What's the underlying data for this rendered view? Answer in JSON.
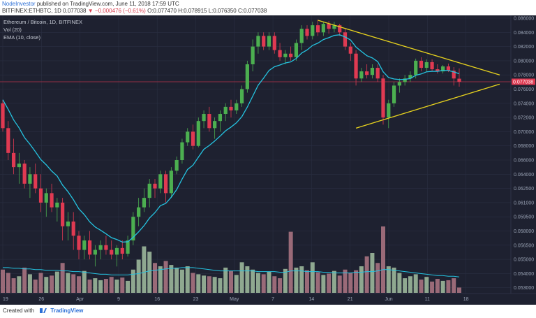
{
  "header": {
    "user": "NodeInvestor",
    "published_text": "published on TradingView.com, June 11, 2018 17:59 UTC",
    "symbol": "BITFINEX:ETHBTC, 1D",
    "last": "0.077038",
    "change": "▼ −0.000476 (−0.61%)",
    "ohlc": "O:0.077470 H:0.078915 L:0.076350 C:0.077038"
  },
  "footer": {
    "created_with": "Created with",
    "brand": "TradingView"
  },
  "chart_data": {
    "type": "candlestick",
    "legend": [
      "Ethereum / Bitcoin, 1D, BITFINEX",
      "Vol (20)",
      "EMA (10, close)"
    ],
    "x_tick_labels": [
      "19",
      "26",
      "Apr",
      "9",
      "16",
      "23",
      "May",
      "7",
      "14",
      "21",
      "Jun",
      "11",
      "18"
    ],
    "y_tick_labels": [
      "0.086000",
      "0.084000",
      "0.082000",
      "0.080000",
      "0.078000",
      "0.076000",
      "0.074000",
      "0.072000",
      "0.070000",
      "0.068000",
      "0.066000",
      "0.064000",
      "0.062500",
      "0.061000",
      "0.059500",
      "0.058000",
      "0.056500",
      "0.055000",
      "0.054000",
      "0.053000"
    ],
    "last_price_label": "0.077038",
    "colors": {
      "background": "#1e2130",
      "grid": "#2a2f42",
      "up": "#4caf50",
      "down": "#e03a52",
      "ema": "#25c3e0",
      "trendline": "#e8d31e",
      "volume_up": "#8fa890",
      "volume_down": "#9a6a78",
      "price_line": "#b8334a",
      "price_tag": "#e03a52"
    },
    "ohlc": [
      [
        0.074,
        0.0745,
        0.07,
        0.0705
      ],
      [
        0.0705,
        0.0715,
        0.066,
        0.067
      ],
      [
        0.067,
        0.069,
        0.064,
        0.065
      ],
      [
        0.065,
        0.067,
        0.063,
        0.0655
      ],
      [
        0.0655,
        0.066,
        0.0625,
        0.063
      ],
      [
        0.063,
        0.065,
        0.0615,
        0.064
      ],
      [
        0.064,
        0.0655,
        0.062,
        0.0625
      ],
      [
        0.0625,
        0.064,
        0.06,
        0.061
      ],
      [
        0.061,
        0.0625,
        0.0595,
        0.062
      ],
      [
        0.062,
        0.063,
        0.06,
        0.0605
      ],
      [
        0.0605,
        0.0615,
        0.059,
        0.061
      ],
      [
        0.061,
        0.0615,
        0.057,
        0.0585
      ],
      [
        0.0585,
        0.06,
        0.057,
        0.059
      ],
      [
        0.059,
        0.06,
        0.056,
        0.0575
      ],
      [
        0.0575,
        0.058,
        0.055,
        0.056
      ],
      [
        0.056,
        0.0575,
        0.055,
        0.057
      ],
      [
        0.057,
        0.058,
        0.055,
        0.0555
      ],
      [
        0.0555,
        0.0565,
        0.0545,
        0.056
      ],
      [
        0.056,
        0.057,
        0.055,
        0.0565
      ],
      [
        0.0565,
        0.0575,
        0.0555,
        0.056
      ],
      [
        0.056,
        0.057,
        0.055,
        0.0555
      ],
      [
        0.0555,
        0.0565,
        0.0545,
        0.0562
      ],
      [
        0.0562,
        0.057,
        0.055,
        0.0556
      ],
      [
        0.0556,
        0.0575,
        0.0553,
        0.057
      ],
      [
        0.057,
        0.06,
        0.0565,
        0.0595
      ],
      [
        0.0595,
        0.0615,
        0.0585,
        0.0605
      ],
      [
        0.0605,
        0.0625,
        0.06,
        0.0615
      ],
      [
        0.0615,
        0.0635,
        0.0605,
        0.063
      ],
      [
        0.063,
        0.0635,
        0.0615,
        0.0625
      ],
      [
        0.0625,
        0.0645,
        0.062,
        0.064
      ],
      [
        0.064,
        0.0645,
        0.061,
        0.062
      ],
      [
        0.062,
        0.065,
        0.0615,
        0.0645
      ],
      [
        0.0645,
        0.0665,
        0.064,
        0.066
      ],
      [
        0.066,
        0.069,
        0.0655,
        0.0685
      ],
      [
        0.0685,
        0.0705,
        0.068,
        0.07
      ],
      [
        0.07,
        0.071,
        0.0675,
        0.068
      ],
      [
        0.068,
        0.072,
        0.0678,
        0.0715
      ],
      [
        0.0715,
        0.073,
        0.0705,
        0.0725
      ],
      [
        0.0725,
        0.0735,
        0.07,
        0.0705
      ],
      [
        0.0705,
        0.072,
        0.069,
        0.0715
      ],
      [
        0.0715,
        0.073,
        0.07,
        0.0725
      ],
      [
        0.0725,
        0.074,
        0.0715,
        0.0735
      ],
      [
        0.0735,
        0.0745,
        0.072,
        0.073
      ],
      [
        0.073,
        0.0745,
        0.0725,
        0.074
      ],
      [
        0.074,
        0.0765,
        0.0735,
        0.076
      ],
      [
        0.076,
        0.08,
        0.0755,
        0.0795
      ],
      [
        0.0795,
        0.083,
        0.0785,
        0.082
      ],
      [
        0.082,
        0.084,
        0.081,
        0.0835
      ],
      [
        0.0835,
        0.084,
        0.0815,
        0.082
      ],
      [
        0.082,
        0.084,
        0.0815,
        0.0835
      ],
      [
        0.0835,
        0.084,
        0.081,
        0.0815
      ],
      [
        0.0815,
        0.0825,
        0.08,
        0.0805
      ],
      [
        0.0805,
        0.0815,
        0.0795,
        0.081
      ],
      [
        0.081,
        0.082,
        0.08,
        0.0805
      ],
      [
        0.0805,
        0.083,
        0.08,
        0.0825
      ],
      [
        0.0825,
        0.085,
        0.0815,
        0.0845
      ],
      [
        0.0845,
        0.085,
        0.083,
        0.0835
      ],
      [
        0.0835,
        0.0855,
        0.083,
        0.085
      ],
      [
        0.085,
        0.0858,
        0.0835,
        0.084
      ],
      [
        0.084,
        0.0855,
        0.0835,
        0.0852
      ],
      [
        0.0852,
        0.0856,
        0.0838,
        0.0845
      ],
      [
        0.0845,
        0.0855,
        0.084,
        0.085
      ],
      [
        0.085,
        0.0852,
        0.0835,
        0.084
      ],
      [
        0.084,
        0.0845,
        0.0815,
        0.082
      ],
      [
        0.082,
        0.0825,
        0.08,
        0.081
      ],
      [
        0.081,
        0.0815,
        0.0765,
        0.0775
      ],
      [
        0.0775,
        0.079,
        0.077,
        0.0785
      ],
      [
        0.0785,
        0.0795,
        0.0775,
        0.078
      ],
      [
        0.078,
        0.0795,
        0.0775,
        0.079
      ],
      [
        0.079,
        0.0795,
        0.077,
        0.0775
      ],
      [
        0.0775,
        0.078,
        0.071,
        0.072
      ],
      [
        0.072,
        0.0745,
        0.0705,
        0.074
      ],
      [
        0.074,
        0.077,
        0.0735,
        0.0765
      ],
      [
        0.0765,
        0.0775,
        0.0755,
        0.077
      ],
      [
        0.077,
        0.078,
        0.0765,
        0.0775
      ],
      [
        0.0775,
        0.0785,
        0.077,
        0.078
      ],
      [
        0.078,
        0.0803,
        0.0775,
        0.08
      ],
      [
        0.08,
        0.0805,
        0.0785,
        0.079
      ],
      [
        0.079,
        0.0802,
        0.0785,
        0.0798
      ],
      [
        0.0798,
        0.0802,
        0.0785,
        0.0788
      ],
      [
        0.0788,
        0.0795,
        0.0782,
        0.0785
      ],
      [
        0.0785,
        0.0794,
        0.0782,
        0.0792
      ],
      [
        0.0792,
        0.0796,
        0.0784,
        0.0786
      ],
      [
        0.0786,
        0.0791,
        0.0765,
        0.0775
      ],
      [
        0.07747,
        0.078915,
        0.07635,
        0.077038
      ]
    ],
    "volume": [
      0.35,
      0.3,
      0.22,
      0.25,
      0.38,
      0.28,
      0.2,
      0.3,
      0.24,
      0.26,
      0.32,
      0.45,
      0.3,
      0.28,
      0.25,
      0.33,
      0.2,
      0.22,
      0.19,
      0.21,
      0.24,
      0.2,
      0.23,
      0.18,
      0.35,
      0.5,
      0.7,
      0.62,
      0.45,
      0.4,
      0.48,
      0.42,
      0.38,
      0.35,
      0.4,
      0.3,
      0.28,
      0.26,
      0.25,
      0.24,
      0.22,
      0.38,
      0.33,
      0.27,
      0.46,
      0.4,
      0.35,
      0.3,
      0.28,
      0.32,
      0.25,
      0.22,
      0.36,
      0.92,
      0.38,
      0.4,
      0.34,
      0.46,
      0.31,
      0.27,
      0.29,
      0.33,
      0.26,
      0.35,
      0.3,
      0.34,
      0.4,
      0.55,
      0.6,
      0.45,
      1.0,
      0.4,
      0.38,
      0.3,
      0.22,
      0.25,
      0.28,
      0.2,
      0.24,
      0.17,
      0.21,
      0.18,
      0.19,
      0.22,
      0.08
    ],
    "volume_ma": [
      0.38,
      0.38,
      0.37,
      0.37,
      0.36,
      0.36,
      0.35,
      0.35,
      0.34,
      0.34,
      0.34,
      0.33,
      0.33,
      0.32,
      0.32,
      0.31,
      0.3,
      0.29,
      0.28,
      0.28,
      0.27,
      0.27,
      0.27,
      0.27,
      0.28,
      0.29,
      0.31,
      0.33,
      0.34,
      0.35,
      0.36,
      0.37,
      0.37,
      0.38,
      0.38,
      0.38,
      0.37,
      0.36,
      0.35,
      0.34,
      0.33,
      0.33,
      0.33,
      0.33,
      0.33,
      0.33,
      0.33,
      0.32,
      0.32,
      0.32,
      0.32,
      0.31,
      0.31,
      0.33,
      0.33,
      0.33,
      0.32,
      0.32,
      0.32,
      0.31,
      0.31,
      0.3,
      0.3,
      0.3,
      0.3,
      0.31,
      0.31,
      0.32,
      0.32,
      0.33,
      0.35,
      0.35,
      0.34,
      0.33,
      0.32,
      0.31,
      0.3,
      0.29,
      0.28,
      0.27,
      0.26,
      0.26,
      0.25,
      0.25,
      0.24
    ],
    "trendlines": [
      {
        "from": {
          "bar": 58,
          "price": 0.0857
        },
        "to": {
          "bar": 92,
          "price": 0.078
        }
      },
      {
        "from": {
          "bar": 65,
          "price": 0.0705
        },
        "to": {
          "bar": 92,
          "price": 0.0767
        }
      }
    ]
  }
}
